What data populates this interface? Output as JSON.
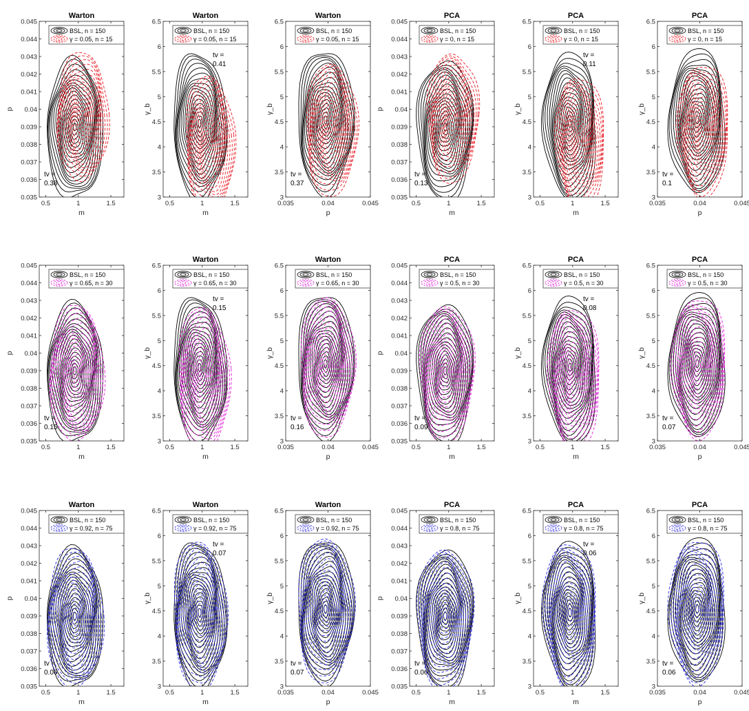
{
  "figure": {
    "rows": [
      {
        "color": "#e8141e",
        "panels": [
          {
            "title": "Warton",
            "type": "mp",
            "xlabel": "m",
            "ylabel": "p",
            "legend_base": "BSL, n = 150",
            "legend_overlay": "γ = 0.05, n = 15",
            "tv_label": "tv =",
            "tv_value": "0.38",
            "tv_pos": "bottom-left"
          },
          {
            "title": "Warton",
            "type": "mg",
            "xlabel": "m",
            "ylabel": "γ_b",
            "legend_base": "BSL, n = 150",
            "legend_overlay": "γ = 0.05, n = 15",
            "tv_label": "tv =",
            "tv_value": "0.41",
            "tv_pos": "top"
          },
          {
            "title": "Warton",
            "type": "pg",
            "xlabel": "p",
            "ylabel": "γ_b",
            "legend_base": "BSL, n = 150",
            "legend_overlay": "γ = 0.05, n = 15",
            "tv_label": "tv =",
            "tv_value": "0.37",
            "tv_pos": "bottom-left"
          },
          {
            "title": "PCA",
            "type": "mp",
            "xlabel": "m",
            "ylabel": "p",
            "legend_base": "BSL, n = 150",
            "legend_overlay": "γ = 0, n = 15",
            "tv_label": "tv =",
            "tv_value": "0.13",
            "tv_pos": "bottom-left"
          },
          {
            "title": "PCA",
            "type": "mg",
            "xlabel": "m",
            "ylabel": "γ_b",
            "legend_base": "BSL, n = 150",
            "legend_overlay": "γ = 0, n = 15",
            "tv_label": "tv =",
            "tv_value": "0.11",
            "tv_pos": "top"
          },
          {
            "title": "PCA",
            "type": "pg",
            "xlabel": "p",
            "ylabel": "γ_b",
            "legend_base": "BSL, n = 150",
            "legend_overlay": "γ = 0, n = 15",
            "tv_label": "tv =",
            "tv_value": "0.1",
            "tv_pos": "bottom-left"
          }
        ]
      },
      {
        "color": "#e020d8",
        "panels": [
          {
            "title": "",
            "type": "mp",
            "xlabel": "m",
            "ylabel": "p",
            "legend_base": "BSL, n = 150",
            "legend_overlay": "γ = 0.65, n = 30",
            "tv_label": "tv =",
            "tv_value": "0.15",
            "tv_pos": "bottom-left"
          },
          {
            "title": "Warton",
            "type": "mg",
            "xlabel": "m",
            "ylabel": "γ_b",
            "legend_base": "BSL, n = 150",
            "legend_overlay": "γ = 0.65, n = 30",
            "tv_label": "tv =",
            "tv_value": "0.15",
            "tv_pos": "top"
          },
          {
            "title": "Warton",
            "type": "pg",
            "xlabel": "p",
            "ylabel": "γ_b",
            "legend_base": "BSL, n = 150",
            "legend_overlay": "γ = 0.65, n = 30",
            "tv_label": "tv =",
            "tv_value": "0.16",
            "tv_pos": "bottom-left"
          },
          {
            "title": "PCA",
            "type": "mp",
            "xlabel": "m",
            "ylabel": "p",
            "legend_base": "BSL, n = 150",
            "legend_overlay": "γ = 0.5, n = 30",
            "tv_label": "tv =",
            "tv_value": "0.09",
            "tv_pos": "bottom-left"
          },
          {
            "title": "PCA",
            "type": "mg",
            "xlabel": "m",
            "ylabel": "γ_b",
            "legend_base": "BSL, n = 150",
            "legend_overlay": "γ = 0.5, n = 30",
            "tv_label": "tv =",
            "tv_value": "0.08",
            "tv_pos": "top"
          },
          {
            "title": "PCA",
            "type": "pg",
            "xlabel": "p",
            "ylabel": "γ_b",
            "legend_base": "BSL, n = 150",
            "legend_overlay": "γ = 0.5, n = 30",
            "tv_label": "tv =",
            "tv_value": "0.07",
            "tv_pos": "bottom-left"
          }
        ]
      },
      {
        "color": "#2a2ae0",
        "panels": [
          {
            "title": "Warton",
            "type": "mp",
            "xlabel": "m",
            "ylabel": "p",
            "legend_base": "BSL, n = 150",
            "legend_overlay": "γ = 0.92, n = 75",
            "tv_label": "tv =",
            "tv_value": "0.06",
            "tv_pos": "bottom-left"
          },
          {
            "title": "Warton",
            "type": "mg",
            "xlabel": "m",
            "ylabel": "γ_b",
            "legend_base": "BSL, n = 150",
            "legend_overlay": "γ = 0.92, n = 75",
            "tv_label": "tv =",
            "tv_value": "0.07",
            "tv_pos": "top"
          },
          {
            "title": "Warton",
            "type": "pg",
            "xlabel": "p",
            "ylabel": "γ_b",
            "legend_base": "BSL, n = 150",
            "legend_overlay": "γ = 0.92, n = 75",
            "tv_label": "tv =",
            "tv_value": "0.07",
            "tv_pos": "bottom-left"
          },
          {
            "title": "PCA",
            "type": "mp",
            "xlabel": "m",
            "ylabel": "p",
            "legend_base": "BSL, n = 150",
            "legend_overlay": "γ = 0.8, n = 75",
            "tv_label": "tv =",
            "tv_value": "0.06",
            "tv_pos": "bottom-left"
          },
          {
            "title": "PCA",
            "type": "mg",
            "xlabel": "m",
            "ylabel": "γ_b",
            "legend_base": "BSL, n = 150",
            "legend_overlay": "γ = 0.8, n = 75",
            "tv_label": "tv =",
            "tv_value": "0.06",
            "tv_pos": "top"
          },
          {
            "title": "PCA",
            "type": "pg",
            "xlabel": "p",
            "ylabel": "γ_b",
            "legend_base": "BSL, n = 150",
            "legend_overlay": "γ = 0.8, n = 75",
            "tv_label": "tv =",
            "tv_value": "0.06",
            "tv_pos": "bottom-left"
          }
        ]
      }
    ]
  },
  "chart_data": {
    "type": "contour",
    "panel_types": {
      "mp": {
        "xlim": [
          0.4,
          1.7
        ],
        "ylim": [
          0.035,
          0.045
        ],
        "xticks": [
          0.5,
          1,
          1.5
        ],
        "xtick_labels": [
          "0.5",
          "1",
          "1.5"
        ],
        "yticks": [
          0.035,
          0.036,
          0.037,
          0.038,
          0.039,
          0.04,
          0.041,
          0.042,
          0.043,
          0.044,
          0.045
        ],
        "ytick_labels": [
          "0.035",
          "0.036",
          "0.037",
          "0.038",
          "0.039",
          "0.04",
          "0.041",
          "0.042",
          "0.043",
          "0.044",
          "0.045"
        ]
      },
      "mg": {
        "xlim": [
          0.4,
          1.7
        ],
        "ylim": [
          3,
          6.5
        ],
        "xticks": [
          0.5,
          1,
          1.5
        ],
        "xtick_labels": [
          "0.5",
          "1",
          "1.5"
        ],
        "yticks": [
          3,
          3.5,
          4,
          4.5,
          5,
          5.5,
          6,
          6.5
        ],
        "ytick_labels": [
          "3",
          "3.5",
          "4",
          "4.5",
          "5",
          "5.5",
          "6",
          "6.5"
        ]
      },
      "pg": {
        "xlim": [
          0.035,
          0.045
        ],
        "ylim": [
          3,
          6.5
        ],
        "xticks": [
          0.035,
          0.04,
          0.045
        ],
        "xtick_labels": [
          "0.035",
          "0.04",
          "0.045"
        ],
        "yticks": [
          3,
          3.5,
          4,
          4.5,
          5,
          5.5,
          6,
          6.5
        ],
        "ytick_labels": [
          "3",
          "3.5",
          "4",
          "4.5",
          "5",
          "5.5",
          "6",
          "6.5"
        ]
      }
    },
    "base_series": "BSL, n = 150",
    "baseline_color": "#000000",
    "overlay_style": "dashed"
  }
}
